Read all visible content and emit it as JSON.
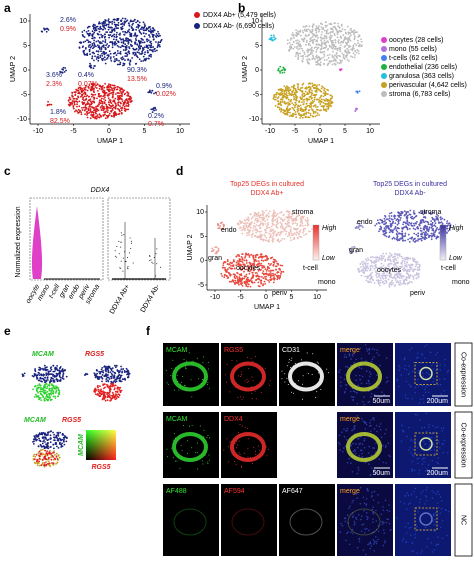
{
  "a": {
    "label": "a",
    "x_label": "UMAP 1",
    "y_label": "UMAP 2",
    "x_ticks": [
      "-10",
      "-5",
      "0",
      "5",
      "10"
    ],
    "y_ticks": [
      "10",
      "5",
      "0",
      "-5",
      "-10"
    ],
    "legend": [
      {
        "text": "DDX4 Ab+ (5,479 cells)",
        "color": "#d7191c"
      },
      {
        "text": "DDX4 Ab- (6,690 cells)",
        "color": "#1a237e"
      }
    ],
    "annotations": [
      {
        "text": "2.6%",
        "color": "#1a237e"
      },
      {
        "text": "0.9%",
        "color": "#d7191c"
      },
      {
        "text": "3.6%",
        "color": "#1a237e"
      },
      {
        "text": "2.3%",
        "color": "#d7191c"
      },
      {
        "text": "0.4%",
        "color": "#1a237e"
      },
      {
        "text": "0.07%",
        "color": "#d7191c"
      },
      {
        "text": "90.3%",
        "color": "#1a237e"
      },
      {
        "text": "13.5%",
        "color": "#d7191c"
      },
      {
        "text": "1.8%",
        "color": "#1a237e"
      },
      {
        "text": "82.5%",
        "color": "#d7191c"
      },
      {
        "text": "0.9%",
        "color": "#1a237e"
      },
      {
        "text": "0.02%",
        "color": "#d7191c"
      },
      {
        "text": "0.2%",
        "color": "#1a237e"
      },
      {
        "text": "0.7%",
        "color": "#d7191c"
      }
    ]
  },
  "b": {
    "label": "b",
    "x_label": "UMAP 1",
    "y_label": "UMAP 2",
    "x_ticks": [
      "-10",
      "-5",
      "0",
      "5",
      "10"
    ],
    "y_ticks": [
      "10",
      "5",
      "0",
      "-5",
      "-10"
    ],
    "legend": [
      {
        "text": "oocytes (28 cells)",
        "color": "#e040c8"
      },
      {
        "text": "mono (55 cells)",
        "color": "#b070e0"
      },
      {
        "text": "t-cells (62 cells)",
        "color": "#4080f0"
      },
      {
        "text": "endothelial (236 cells)",
        "color": "#20b040"
      },
      {
        "text": "granulosa (363 cells)",
        "color": "#20c0e0"
      },
      {
        "text": "perivascular (4,642 cells)",
        "color": "#c8a020"
      },
      {
        "text": "stroma (6,783 cells)",
        "color": "#bdbdbd"
      }
    ]
  },
  "c": {
    "label": "c",
    "title": "DDX4",
    "y_label": "Normalized expression",
    "categories_left": [
      "oocyte",
      "mono",
      "t-cell",
      "gran",
      "endo",
      "periv",
      "stroma"
    ],
    "categories_right": [
      "DDX4 Ab+",
      "DDX4 Ab-"
    ]
  },
  "d": {
    "label": "d",
    "x_label": "UMAP 1",
    "y_label": "UMAP 2",
    "x_ticks": [
      "-10",
      "-5",
      "0",
      "5",
      "10"
    ],
    "y_ticks": [
      "10",
      "5",
      "0",
      "-5"
    ],
    "plots": [
      {
        "title": [
          "Top25 DEGs in cultured",
          "DDX4 Ab+"
        ],
        "color": "#e8302a",
        "high": "High",
        "low": "Low",
        "clusters": [
          "endo",
          "gran",
          "oocytes",
          "stroma",
          "periv",
          "t-cell",
          "mono"
        ]
      },
      {
        "title": [
          "Top25 DEGs in cultured",
          "DDX4 Ab-"
        ],
        "color": "#3a30a0",
        "high": "High",
        "low": "Low",
        "clusters": [
          "endo",
          "gran",
          "oocytes",
          "stroma",
          "periv",
          "t-cell",
          "mono"
        ]
      }
    ]
  },
  "e": {
    "label": "e",
    "gene1": "MCAM",
    "gene2": "RGS5"
  },
  "f": {
    "label": "f",
    "rows": [
      {
        "channels": [
          {
            "text": "MCAM",
            "color": "#33e633"
          },
          {
            "text": "RGS5",
            "color": "#ff3030"
          },
          {
            "text": "CD31",
            "color": "#ffffff"
          },
          {
            "text": "merge",
            "color": "#ffa020"
          }
        ],
        "scale_bars": [
          "50um",
          "200um"
        ],
        "side": "Co-expression"
      },
      {
        "channels": [
          {
            "text": "MCAM",
            "color": "#33e633"
          },
          {
            "text": "DDX4",
            "color": "#ff3030"
          },
          {
            "text": "merge",
            "color": "#ffa020"
          }
        ],
        "scale_bars": [
          "50um",
          "200um"
        ],
        "side": "Co-expression"
      },
      {
        "channels": [
          {
            "text": "AF488",
            "color": "#33e633"
          },
          {
            "text": "AF594",
            "color": "#ff3030"
          },
          {
            "text": "AF647",
            "color": "#ffffff"
          },
          {
            "text": "merge",
            "color": "#ffa020"
          }
        ],
        "scale_bars": [],
        "side": "NC"
      }
    ]
  }
}
